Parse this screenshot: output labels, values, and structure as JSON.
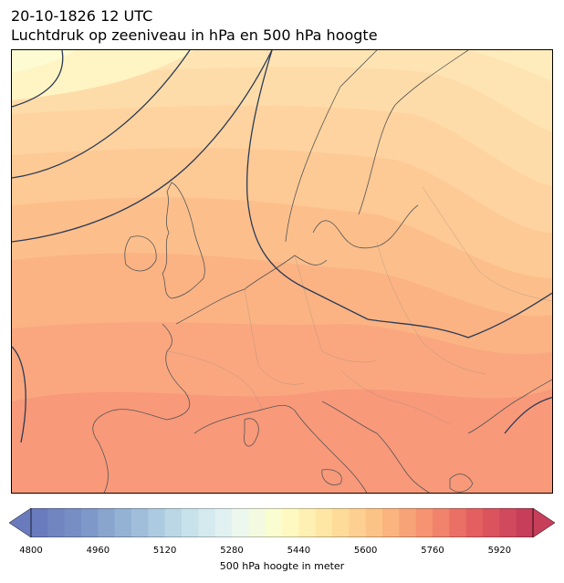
{
  "title": {
    "line1": "20-10-1826 12 UTC",
    "line2": "Luchtdruk op zeeniveau in hPa en 500 hPa hoogte"
  },
  "map": {
    "region": "Europe",
    "fill_variable": "500 hPa geopotential height (m)",
    "contour_variable": "mean sea level pressure (hPa)",
    "contour_color": "#2b3a55",
    "coastline_color": "#555555",
    "border_color": "#9a8a7a"
  },
  "colorbar": {
    "label": "500 hPa hoogte in meter",
    "ticks": [
      "4800",
      "4960",
      "5120",
      "5280",
      "5440",
      "5600",
      "5760",
      "5920"
    ],
    "range": [
      4800,
      6000
    ],
    "extend": "both",
    "colormap": "RdYlBu_r"
  },
  "chart_data": {
    "type": "heatmap",
    "variable": "500 hPa hoogte in meter",
    "value_range_shown": [
      5440,
      5880
    ],
    "levels": [
      4800,
      4840,
      4880,
      4920,
      4960,
      5000,
      5040,
      5080,
      5120,
      5160,
      5200,
      5240,
      5280,
      5320,
      5360,
      5400,
      5440,
      5480,
      5520,
      5560,
      5600,
      5640,
      5680,
      5720,
      5760,
      5800,
      5840,
      5880,
      5920,
      5960,
      6000
    ]
  }
}
